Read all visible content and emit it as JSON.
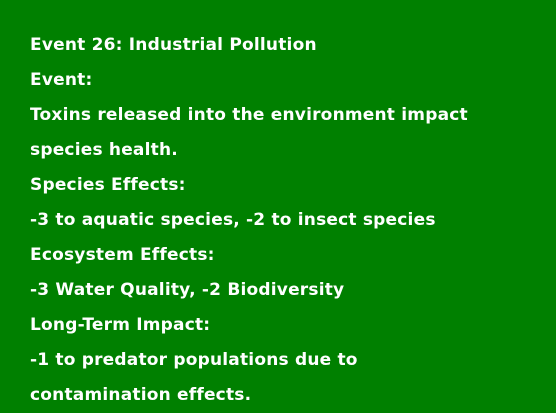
{
  "card": {
    "background_color": "#008000",
    "text_color": "#ffffff",
    "title": "Event 26: Industrial Pollution",
    "event_label": "Event:",
    "event_text_line1": "Toxins released into the environment impact",
    "event_text_line2": "species health.",
    "species_label": "Species Effects:",
    "species_text": "-3 to aquatic species, -2 to insect species",
    "ecosystem_label": "Ecosystem Effects:",
    "ecosystem_text": "-3 Water Quality, -2 Biodiversity",
    "longterm_label": "Long-Term Impact:",
    "longterm_text_line1": "-1 to predator populations due to",
    "longterm_text_line2": "contamination effects."
  }
}
